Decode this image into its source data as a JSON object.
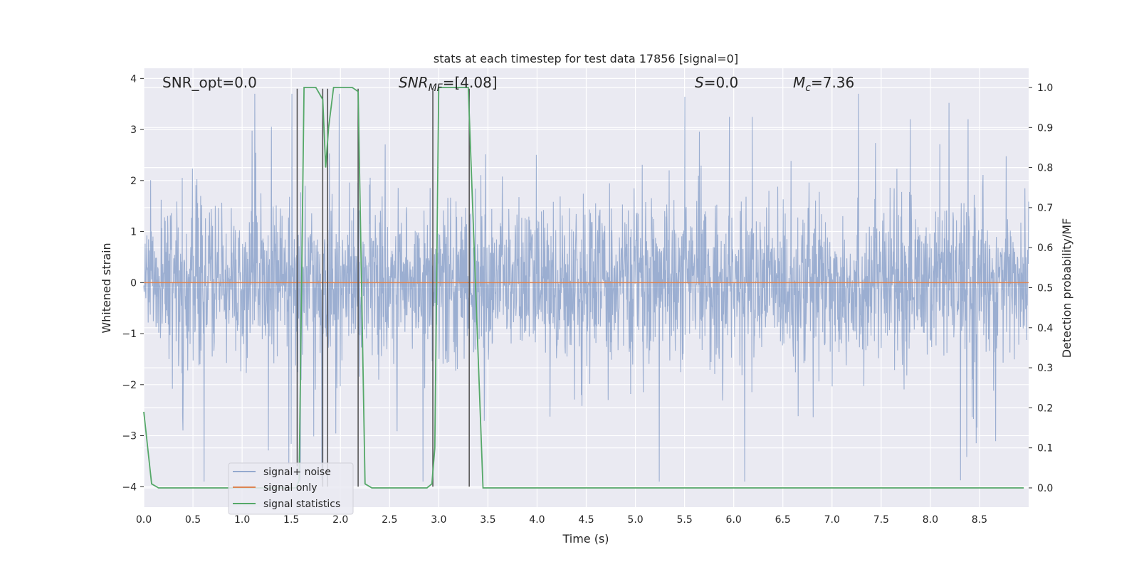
{
  "chart_data": {
    "type": "line",
    "title": "stats at each timestep for test data 17856 [signal=0]",
    "xlabel": "Time (s)",
    "ylabel": "Whitened strain",
    "y2label": "Detection probability/MF",
    "xlim": [
      0,
      9.0
    ],
    "ylim": [
      -4.4,
      4.2
    ],
    "y2lim": [
      -0.048,
      1.048
    ],
    "xticks": [
      "0.0",
      "0.5",
      "1.0",
      "1.5",
      "2.0",
      "2.5",
      "3.0",
      "3.5",
      "4.0",
      "4.5",
      "5.0",
      "5.5",
      "6.0",
      "6.5",
      "7.0",
      "7.5",
      "8.0",
      "8.5"
    ],
    "yticks": [
      "4",
      "3",
      "2",
      "1",
      "0",
      "−1",
      "−2",
      "−3",
      "−4"
    ],
    "y2ticks": [
      "1.0",
      "0.9",
      "0.8",
      "0.7",
      "0.6",
      "0.5",
      "0.4",
      "0.3",
      "0.2",
      "0.1",
      "0.0"
    ],
    "grid": true,
    "legend_position": "lower-left",
    "colors": {
      "background": "#eaeaf2",
      "grid": "#ffffff",
      "noise": "#4c72b0",
      "signal": "#dd8452",
      "statistics": "#55a868",
      "marker_lines": "#4d4d4d"
    },
    "annotations": {
      "snr_opt": "SNR_opt=0.0",
      "snr_mf_main": "SNR",
      "snr_mf_sub": "MF",
      "snr_mf_value": "=[4.08]",
      "s_label": "S",
      "s_value": "=0.0",
      "mc_label": "M",
      "mc_sub": "c",
      "mc_value": "=7.36"
    },
    "series": [
      {
        "name": "signal+ noise",
        "note_style": "whitened noise, amplitude roughly ±2 with spikes to ±3.8"
      },
      {
        "name": "signal only",
        "values_constant": 0.0
      },
      {
        "name": "signal statistics",
        "axis": "right",
        "x": [
          0.0,
          0.08,
          0.15,
          1.55,
          1.58,
          1.63,
          1.75,
          1.82,
          1.85,
          1.88,
          1.93,
          1.97,
          2.12,
          2.18,
          2.25,
          2.32,
          2.88,
          2.93,
          2.96,
          3.0,
          3.05,
          3.3,
          3.45,
          8.95
        ],
        "y": [
          0.19,
          0.01,
          0.0,
          0.0,
          0.02,
          1.0,
          1.0,
          0.97,
          0.8,
          0.9,
          1.0,
          1.0,
          1.0,
          0.99,
          0.01,
          0.0,
          0.0,
          0.01,
          0.1,
          1.0,
          1.0,
          1.0,
          0.0,
          0.0
        ]
      }
    ],
    "vertical_markers": [
      {
        "x": 1.56,
        "y_top": 3.8,
        "y_bottom": -3.6
      },
      {
        "x": 1.82,
        "y_top": 3.8,
        "y_bottom": -4.0
      },
      {
        "x": 1.87,
        "y_top": 3.8,
        "y_bottom": -4.0
      },
      {
        "x": 2.18,
        "y_top": 3.8,
        "y_bottom": -4.0
      },
      {
        "x": 2.94,
        "y_top": 3.8,
        "y_bottom": -4.0
      },
      {
        "x": 3.31,
        "y_top": 3.8,
        "y_bottom": -4.0
      }
    ],
    "legend": [
      "signal+ noise",
      "signal only",
      "signal statistics"
    ]
  }
}
